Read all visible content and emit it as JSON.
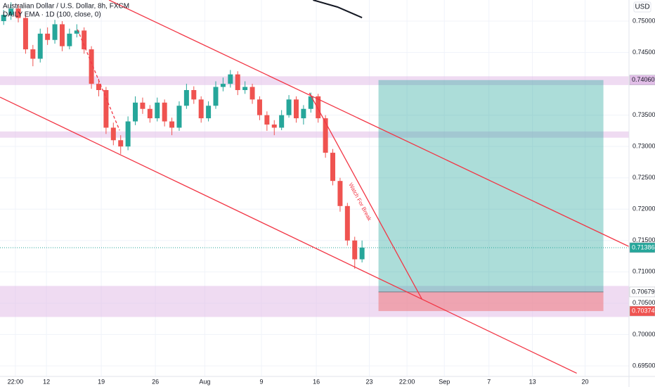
{
  "chart_data": {
    "type": "candlestick",
    "title": "Australian Dollar / U.S. Dollar, 8h, FXCM",
    "currency": "USD",
    "xlim": [
      0,
      172
    ],
    "ylim": [
      0.69331,
      0.75337
    ],
    "xticks": [
      {
        "value": 4.2,
        "label": "22:00"
      },
      {
        "value": 12.7,
        "label": "12"
      },
      {
        "value": 27.7,
        "label": "19"
      },
      {
        "value": 42.5,
        "label": "26"
      },
      {
        "value": 56,
        "label": "Aug"
      },
      {
        "value": 71.5,
        "label": "9"
      },
      {
        "value": 86.5,
        "label": "16"
      },
      {
        "value": 101,
        "label": "23"
      },
      {
        "value": 111.3,
        "label": "22:00"
      },
      {
        "value": 121.5,
        "label": "Sep"
      },
      {
        "value": 133.7,
        "label": "7"
      },
      {
        "value": 145.6,
        "label": "13"
      },
      {
        "value": 160,
        "label": "20"
      }
    ],
    "yticks": [
      {
        "value": 0.75,
        "label": "0.75000"
      },
      {
        "value": 0.745,
        "label": "0.74500"
      },
      {
        "value": 0.735,
        "label": "0.73500"
      },
      {
        "value": 0.73,
        "label": "0.73000"
      },
      {
        "value": 0.725,
        "label": "0.72500"
      },
      {
        "value": 0.72,
        "label": "0.72000"
      },
      {
        "value": 0.715,
        "label": "0.71500"
      },
      {
        "value": 0.71,
        "label": "0.71000"
      },
      {
        "value": 0.705,
        "label": "0.70500"
      },
      {
        "value": 0.7,
        "label": "0.70000"
      },
      {
        "value": 0.695,
        "label": "0.69500"
      }
    ],
    "up_color": "#26a69a",
    "down_color": "#ef5350",
    "x": [
      1,
      3,
      5,
      7,
      9,
      11,
      13,
      15,
      17,
      19,
      21,
      23,
      25,
      27,
      29,
      31,
      33,
      35,
      37,
      39,
      41,
      43,
      45,
      47,
      49,
      51,
      53,
      55,
      57,
      59,
      61,
      63,
      65,
      67,
      69,
      71,
      73,
      75,
      77,
      79,
      81,
      83,
      85,
      87,
      89,
      91,
      93,
      95,
      97,
      99
    ],
    "open": [
      0.75,
      0.751,
      0.752,
      0.7505,
      0.7455,
      0.744,
      0.748,
      0.747,
      0.7495,
      0.746,
      0.748,
      0.7485,
      0.7455,
      0.74,
      0.739,
      0.733,
      0.731,
      0.73,
      0.734,
      0.737,
      0.736,
      0.7345,
      0.737,
      0.734,
      0.733,
      0.7365,
      0.739,
      0.7375,
      0.7345,
      0.7365,
      0.7395,
      0.74,
      0.7415,
      0.739,
      0.7395,
      0.7375,
      0.735,
      0.7335,
      0.733,
      0.735,
      0.7375,
      0.7345,
      0.736,
      0.738,
      0.7345,
      0.729,
      0.7245,
      0.7205,
      0.715,
      0.712
    ],
    "high": [
      0.7518,
      0.753,
      0.7526,
      0.751,
      0.7462,
      0.7488,
      0.749,
      0.7502,
      0.75,
      0.7488,
      0.7495,
      0.749,
      0.746,
      0.7408,
      0.7395,
      0.7338,
      0.7318,
      0.7348,
      0.738,
      0.7378,
      0.7366,
      0.7378,
      0.7375,
      0.7346,
      0.7372,
      0.74,
      0.7396,
      0.738,
      0.7372,
      0.7404,
      0.741,
      0.7422,
      0.742,
      0.7404,
      0.74,
      0.738,
      0.7356,
      0.7342,
      0.7358,
      0.7382,
      0.738,
      0.7366,
      0.7386,
      0.7384,
      0.735,
      0.7296,
      0.725,
      0.721,
      0.7156,
      0.715
    ],
    "low": [
      0.7494,
      0.7502,
      0.7498,
      0.7448,
      0.7428,
      0.7434,
      0.7462,
      0.7464,
      0.7452,
      0.7455,
      0.7474,
      0.7448,
      0.7392,
      0.738,
      0.732,
      0.7302,
      0.7288,
      0.7294,
      0.7334,
      0.7352,
      0.7338,
      0.734,
      0.7332,
      0.7318,
      0.7325,
      0.736,
      0.7368,
      0.7338,
      0.734,
      0.736,
      0.7388,
      0.7394,
      0.7382,
      0.7384,
      0.7368,
      0.7342,
      0.7325,
      0.7318,
      0.7326,
      0.7346,
      0.7338,
      0.7335,
      0.7354,
      0.7338,
      0.7282,
      0.7238,
      0.7196,
      0.7142,
      0.7105,
      0.7115
    ],
    "close": [
      0.751,
      0.752,
      0.7505,
      0.7455,
      0.744,
      0.748,
      0.747,
      0.7495,
      0.746,
      0.748,
      0.7485,
      0.7455,
      0.74,
      0.739,
      0.733,
      0.731,
      0.73,
      0.734,
      0.737,
      0.736,
      0.7345,
      0.737,
      0.734,
      0.733,
      0.7365,
      0.739,
      0.7375,
      0.7345,
      0.7365,
      0.7395,
      0.74,
      0.7415,
      0.739,
      0.7395,
      0.7375,
      0.735,
      0.7335,
      0.733,
      0.735,
      0.7375,
      0.7345,
      0.736,
      0.738,
      0.7345,
      0.729,
      0.7245,
      0.7205,
      0.715,
      0.712,
      0.71386
    ],
    "ema": {
      "name": "DAILY EMA · 1D (100, close, 0)",
      "color": "#131722",
      "x": [
        85.6,
        92.3,
        99
      ],
      "y": [
        0.75337,
        0.75225,
        0.75056
      ]
    },
    "zones": [
      {
        "low": 0.7398,
        "high": 0.7412
      },
      {
        "low": 0.7314,
        "high": 0.7324
      },
      {
        "low": 0.7028,
        "high": 0.70775
      }
    ],
    "zone_color": "#e1bee7",
    "lines": [
      {
        "x": [
          29.8,
          172
        ],
        "y": [
          0.75337,
          0.71404
        ],
        "color": "#f23645",
        "dashed": false
      },
      {
        "x": [
          0,
          157.7
        ],
        "y": [
          0.73787,
          0.69382
        ],
        "color": "#f23645",
        "dashed": false
      },
      {
        "x": [
          84.6,
          115.4
        ],
        "y": [
          0.73854,
          0.70562
        ],
        "color": "#f23645",
        "dashed": false
      },
      {
        "x": [
          21.2,
          32.7
        ],
        "y": [
          0.74865,
          0.73258
        ],
        "color": "#f23645",
        "dashed": true
      }
    ],
    "annotation": "Watch For Break",
    "position": {
      "x": [
        103.5,
        165
      ],
      "target": 0.7406,
      "entry": 0.70679,
      "stop": 0.70374,
      "profit_color": "#26a69a",
      "loss_color": "#ef5350"
    },
    "last_price": 0.71386,
    "price_labels": [
      {
        "value": 0.7406,
        "label": "0.74060",
        "color": "#e1bee7",
        "text_color": "#131722"
      },
      {
        "value": 0.71386,
        "label": "0.71386",
        "color": "#26a69a",
        "text_color": "#ffffff"
      },
      {
        "value": 0.70679,
        "label": "0.70679",
        "color": "#ffffff",
        "text_color": "#131722"
      },
      {
        "value": 0.70374,
        "label": "0.70374",
        "color": "#ef5350",
        "text_color": "#ffffff"
      }
    ]
  }
}
